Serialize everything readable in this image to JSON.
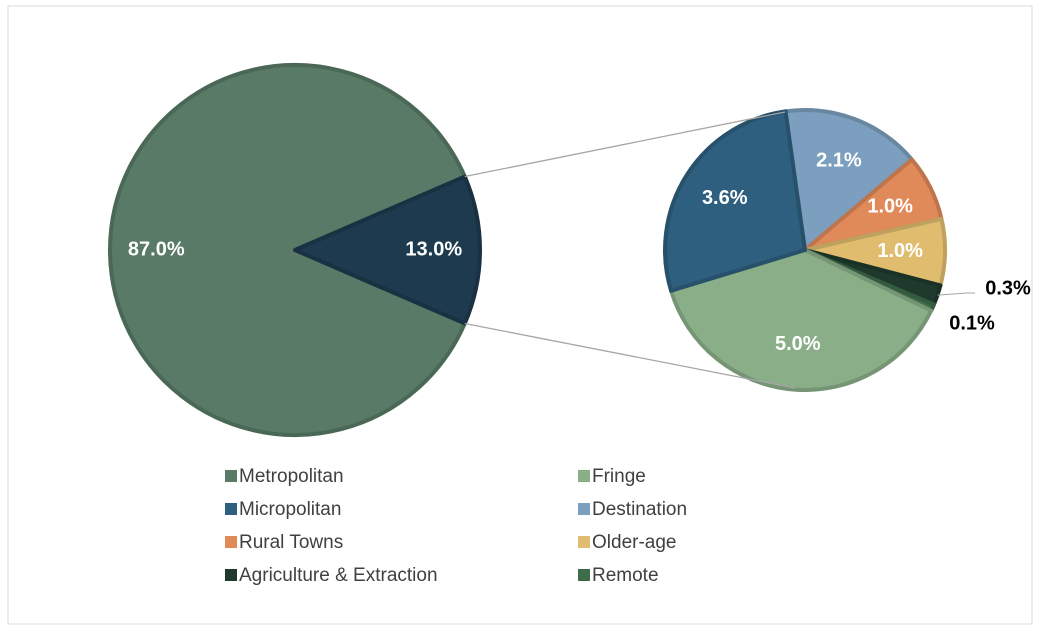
{
  "chart_data": {
    "type": "pie-of-pie",
    "main_pie": {
      "values": [
        87.0,
        13.0
      ],
      "value_labels": [
        "87.0%",
        "13.0%"
      ],
      "colors": [
        "#587a66",
        "#1d3a4e"
      ]
    },
    "secondary_pie": {
      "values": [
        2.1,
        1.0,
        1.0,
        0.3,
        0.1,
        5.0,
        3.6
      ],
      "value_labels": [
        "2.1%",
        "1.0%",
        "1.0%",
        "0.3%",
        "0.1%",
        "5.0%",
        "3.6%"
      ],
      "colors": [
        "#7d9fbf",
        "#e08a5a",
        "#e0bd6e",
        "#1f3a2d",
        "#3e6b4a",
        "#8aaf88",
        "#2e5f7e"
      ]
    },
    "legend": [
      {
        "name": "Metropolitan",
        "color": "#587a66"
      },
      {
        "name": "Fringe",
        "color": "#8aaf88"
      },
      {
        "name": "Micropolitan",
        "color": "#2e5f7e"
      },
      {
        "name": "Destination",
        "color": "#7d9fbf"
      },
      {
        "name": "Rural Towns",
        "color": "#e08a5a"
      },
      {
        "name": "Older-age",
        "color": "#e0bd6e"
      },
      {
        "name": "Agriculture & Extraction",
        "color": "#1f3a2d"
      },
      {
        "name": "Remote",
        "color": "#3e6b4a"
      }
    ]
  }
}
